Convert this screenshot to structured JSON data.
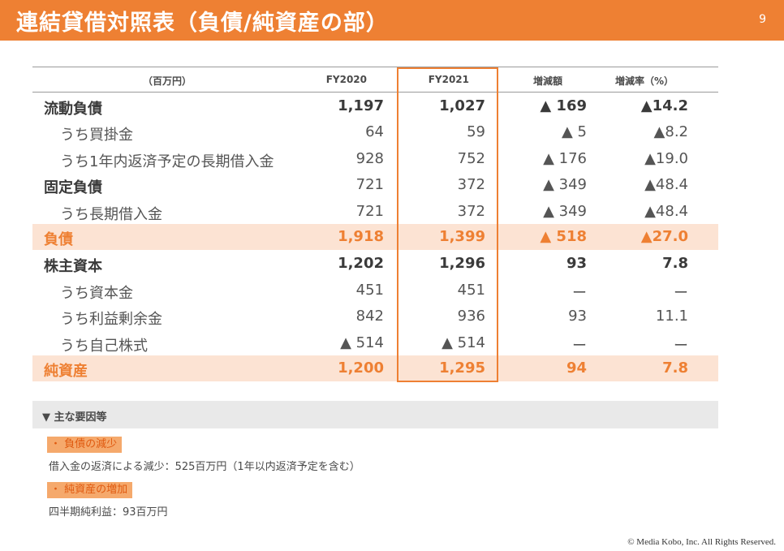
{
  "header": {
    "title": "連結貸借対照表（負債/純資産の部）",
    "page_number": "9"
  },
  "table": {
    "columns": {
      "label": "（百万円）",
      "fy2020": "FY2020",
      "fy2021": "FY2021",
      "change": "増減額",
      "change_rate": "増減率（%）"
    },
    "rows": [
      {
        "label": "流動負債",
        "fy2020": "1,197",
        "fy2021": "1,027",
        "change": "▲ 169",
        "rate": "▲14.2"
      },
      {
        "label": "うち買掛金",
        "fy2020": "64",
        "fy2021": "59",
        "change": "▲ 5",
        "rate": "▲8.2"
      },
      {
        "label": "うち1年内返済予定の長期借入金",
        "fy2020": "928",
        "fy2021": "752",
        "change": "▲ 176",
        "rate": "▲19.0"
      },
      {
        "label": "固定負債",
        "fy2020": "721",
        "fy2021": "372",
        "change": "▲ 349",
        "rate": "▲48.4"
      },
      {
        "label": "うち長期借入金",
        "fy2020": "721",
        "fy2021": "372",
        "change": "▲ 349",
        "rate": "▲48.4"
      },
      {
        "label": "負債",
        "fy2020": "1,918",
        "fy2021": "1,399",
        "change": "▲ 518",
        "rate": "▲27.0"
      },
      {
        "label": "株主資本",
        "fy2020": "1,202",
        "fy2021": "1,296",
        "change": "93",
        "rate": "7.8"
      },
      {
        "label": "うち資本金",
        "fy2020": "451",
        "fy2021": "451",
        "change": "ー",
        "rate": "ー"
      },
      {
        "label": "うち利益剰余金",
        "fy2020": "842",
        "fy2021": "936",
        "change": "93",
        "rate": "11.1"
      },
      {
        "label": "うち自己株式",
        "fy2020": "▲ 514",
        "fy2021": "▲ 514",
        "change": "ー",
        "rate": "ー"
      },
      {
        "label": "純資産",
        "fy2020": "1,200",
        "fy2021": "1,295",
        "change": "94",
        "rate": "7.8"
      }
    ]
  },
  "factors": {
    "title": "▼ 主な要因等",
    "items": [
      {
        "tag": "・ 負債の減少",
        "text": "借入金の返済による減少：525百万円（1年以内返済予定を含む）"
      },
      {
        "tag": "・ 純資産の増加",
        "text": "四半期純利益：93百万円"
      }
    ]
  },
  "footer": {
    "copyright": "© Media Kobo, Inc. All Rights Reserved."
  },
  "colors": {
    "accent": "#ee8033",
    "highlight_row": "#fce3d3",
    "tag_bg": "#f5a96c"
  }
}
